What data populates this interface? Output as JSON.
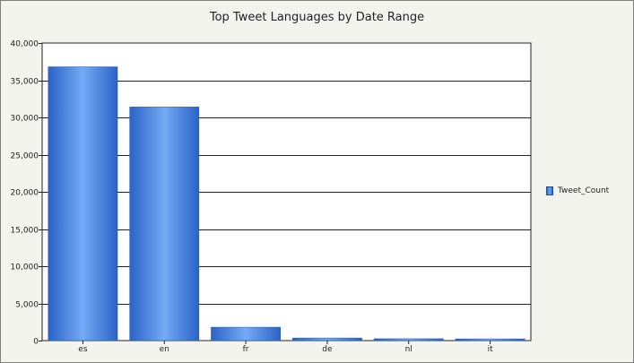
{
  "chart_data": {
    "type": "bar",
    "title": "Top Tweet Languages by Date Range",
    "categories": [
      "es",
      "en",
      "fr",
      "de",
      "nl",
      "it"
    ],
    "series": [
      {
        "name": "Tweet_Count",
        "values": [
          36800,
          31400,
          1800,
          350,
          250,
          230
        ]
      }
    ],
    "ylim": [
      0,
      40000
    ],
    "yticks": [
      0,
      5000,
      10000,
      15000,
      20000,
      25000,
      30000,
      35000,
      40000
    ],
    "ytick_labels": [
      "0",
      "5,000",
      "10,000",
      "15,000",
      "20,000",
      "25,000",
      "30,000",
      "35,000",
      "40,000"
    ],
    "grid": true,
    "legend_position": "right",
    "colors": {
      "bar_edge": "#2a63c6",
      "bar_center": "#74aaf6",
      "plot_bg": "#ffffff",
      "frame_bg": "#f4f4ef",
      "grid": "#222222"
    }
  }
}
